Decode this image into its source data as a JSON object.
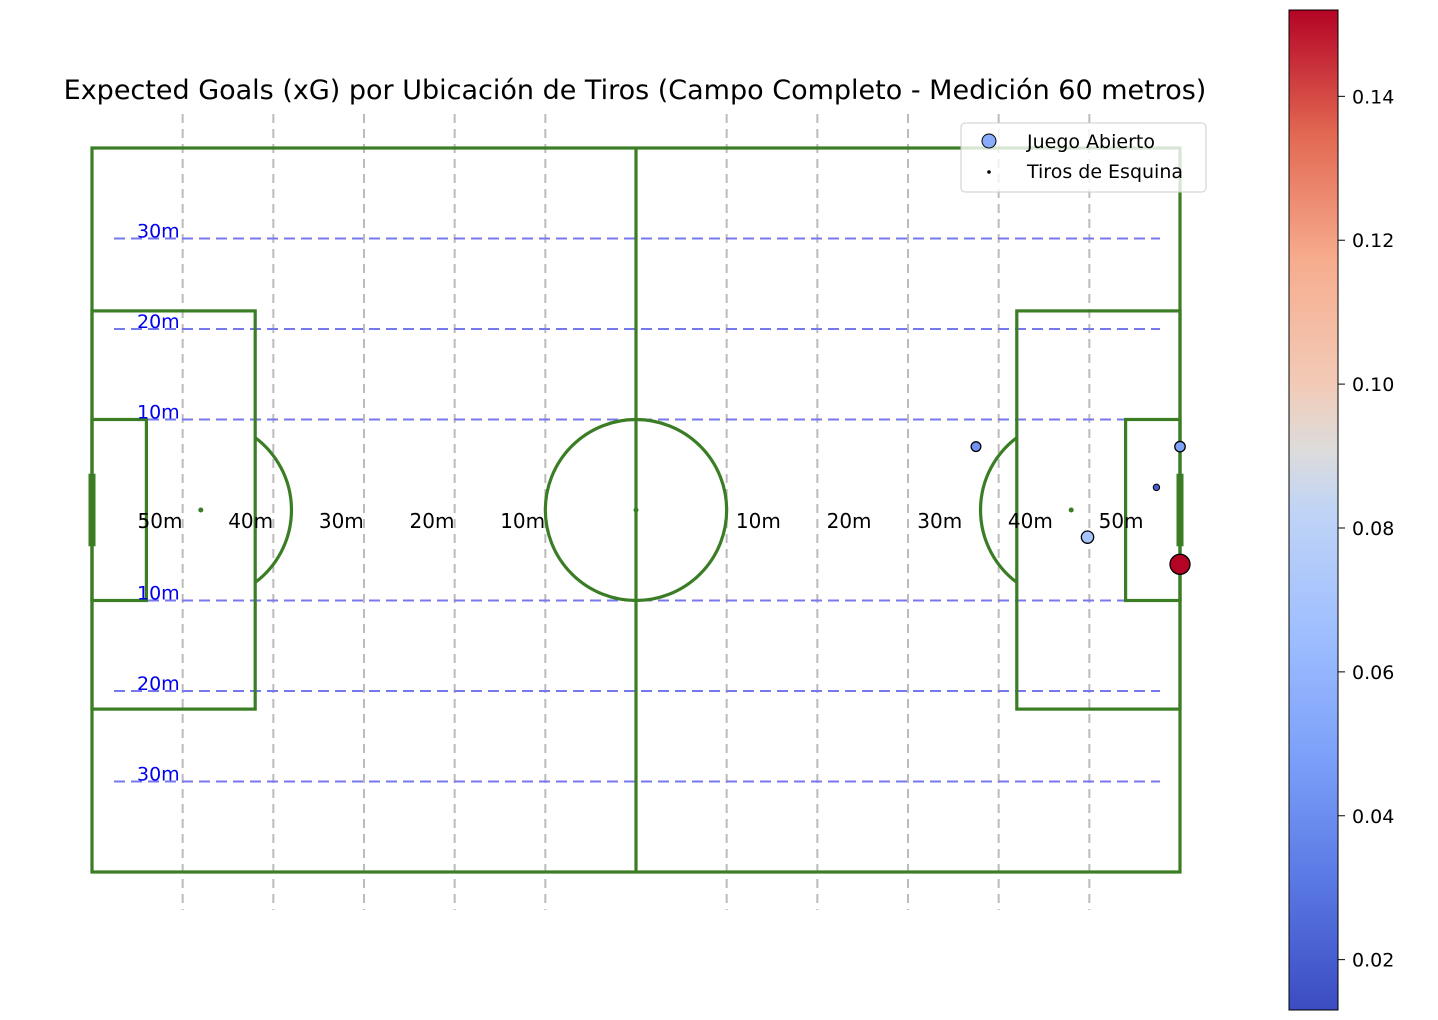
{
  "chart_data": {
    "type": "scatter",
    "title": "Expected Goals (xG) por Ubicación de Tiros (Campo Completo - Medición 60 metros)",
    "field": {
      "length_m": 120,
      "width_m": 80
    },
    "x_distance_labels": {
      "left": [
        "50m",
        "40m",
        "30m",
        "20m",
        "10m"
      ],
      "right": [
        "10m",
        "20m",
        "30m",
        "40m",
        "50m"
      ]
    },
    "y_band_labels": [
      "30m",
      "20m",
      "10m",
      "10m",
      "20m",
      "30m"
    ],
    "legend": {
      "placement": "top-right",
      "entries": [
        "Juego Abierto",
        "Tiros de Esquina"
      ]
    },
    "colorbar": {
      "colormap": "coolwarm",
      "range": [
        0.013,
        0.152
      ],
      "ticks": [
        "0.02",
        "0.04",
        "0.06",
        "0.08",
        "0.10",
        "0.12",
        "0.14"
      ]
    },
    "series": [
      {
        "name": "Juego Abierto",
        "points": [
          {
            "x": 97.5,
            "y": 47.0,
            "xg": 0.042
          },
          {
            "x": 120.0,
            "y": 47.0,
            "xg": 0.05
          },
          {
            "x": 109.8,
            "y": 37.0,
            "xg": 0.07
          },
          {
            "x": 120.0,
            "y": 34.0,
            "xg": 0.152
          }
        ]
      },
      {
        "name": "Tiros de Esquina",
        "points": [
          {
            "x": 117.4,
            "y": 42.5,
            "xg": 0.02
          }
        ]
      }
    ]
  },
  "colors": {
    "field_lines": "#3a7d24",
    "grid_vertical": "#bbbbbb",
    "band_lines": "#7777ee",
    "band_label": "#0000ee"
  }
}
